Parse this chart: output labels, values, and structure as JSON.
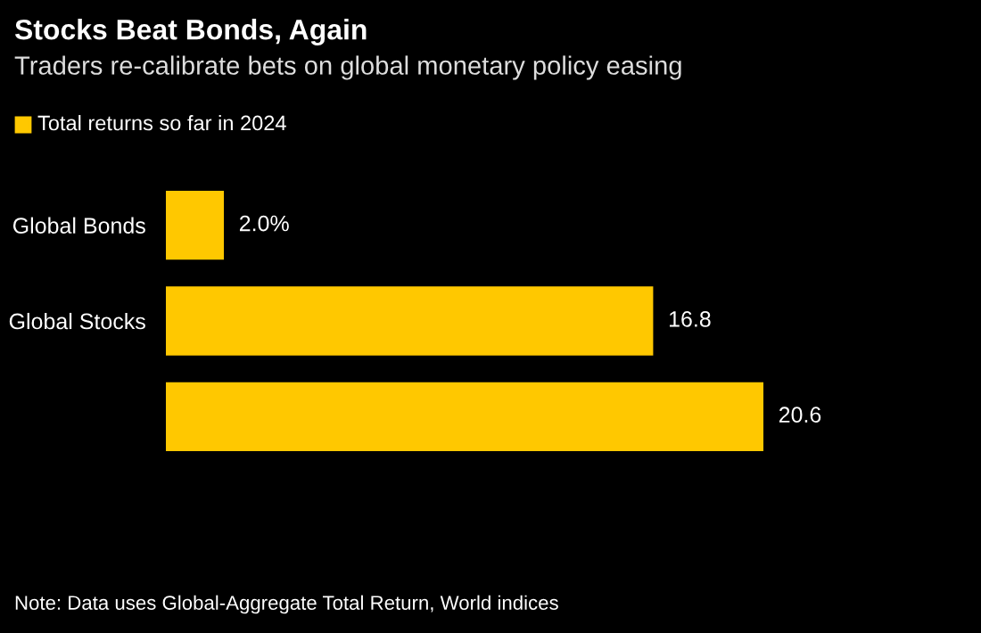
{
  "chart_data": {
    "type": "bar",
    "orientation": "horizontal",
    "title": "Stocks Beat Bonds, Again",
    "subtitle": "Traders re-calibrate bets on global monetary policy easing",
    "categories": [
      "Global Bonds",
      "Global Stocks",
      null
    ],
    "series": [
      {
        "name": "Total returns so far in 2024",
        "color": "#ffc800",
        "values": [
          2.0,
          16.8,
          20.6
        ],
        "value_labels": [
          "2.0%",
          "16.8",
          "20.6"
        ]
      }
    ],
    "legend": "top left",
    "grid": false,
    "annotations": [
      "Note: Data uses Global-Aggregate Total Return, World indices"
    ]
  }
}
